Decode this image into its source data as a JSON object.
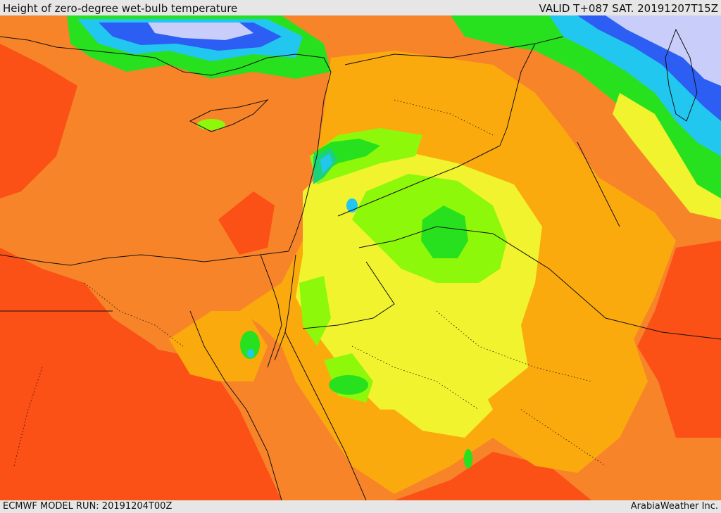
{
  "header": {
    "title": "Height of zero-degree wet-bulb temperature",
    "valid": "VALID T+087 SAT. 20191207T15Z"
  },
  "footer": {
    "model_run": "ECMWF MODEL RUN: 20191204T00Z",
    "credit": "ArabiaWeather Inc."
  },
  "colors": {
    "deep_orange": "#fb5016",
    "orange": "#f8842a",
    "light_orange": "#fbaa0e",
    "yellow": "#f0f32e",
    "lime": "#8ef80a",
    "green": "#27e11e",
    "teal": "#1bd27a",
    "cyan": "#22c7f0",
    "blue": "#2c5ef3",
    "lavender": "#c9cdfa",
    "coast_line": "#111111"
  }
}
